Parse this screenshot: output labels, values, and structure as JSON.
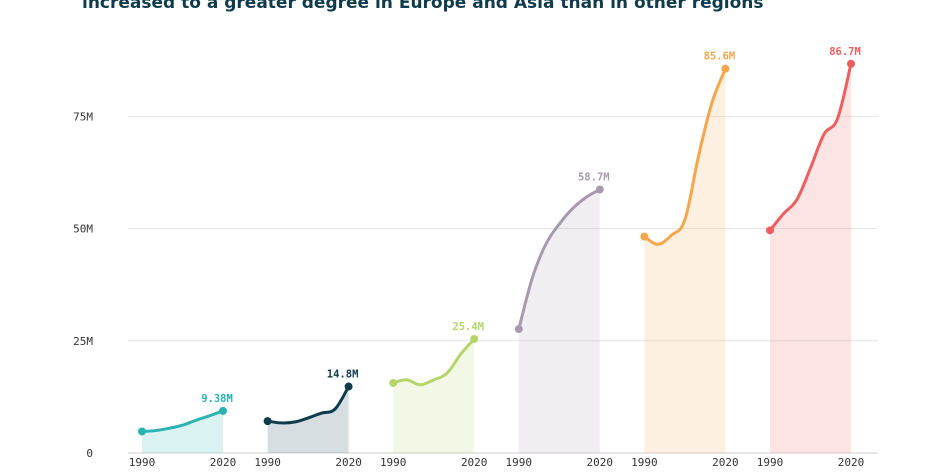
{
  "title": "increased to a greater degree in Europe and Asia than in other regions",
  "chart_data": {
    "type": "line",
    "ylim": [
      0,
      92
    ],
    "y_ticks": [
      {
        "value": 0,
        "label": "0"
      },
      {
        "value": 25,
        "label": "25M"
      },
      {
        "value": 50,
        "label": "50M"
      },
      {
        "value": 75,
        "label": "75M"
      }
    ],
    "grid": true,
    "series": [
      {
        "color": "#2ab3b1",
        "x": [
          1990,
          1995,
          2000,
          2005,
          2010,
          2015,
          2020
        ],
        "values": [
          4.8,
          5.0,
          5.5,
          6.2,
          7.3,
          8.3,
          9.38
        ],
        "x_start_label": "1990",
        "x_end_label": "2020",
        "end_label": "9.38M"
      },
      {
        "color": "#0f3b4c",
        "x": [
          1990,
          1995,
          2000,
          2005,
          2010,
          2015,
          2020
        ],
        "values": [
          7.1,
          6.7,
          6.9,
          7.8,
          8.9,
          9.8,
          14.8
        ],
        "x_start_label": "1990",
        "x_end_label": "2020",
        "end_label": "14.8M"
      },
      {
        "color": "#b5d56a",
        "x": [
          1990,
          1995,
          2000,
          2005,
          2010,
          2015,
          2020
        ],
        "values": [
          15.6,
          16.3,
          15.2,
          16.3,
          17.8,
          22.0,
          25.4
        ],
        "x_start_label": "1990",
        "x_end_label": "2020",
        "end_label": "25.4M"
      },
      {
        "color": "#a89aae",
        "x": [
          1990,
          1995,
          2000,
          2005,
          2010,
          2015,
          2020
        ],
        "values": [
          27.6,
          39.0,
          46.5,
          51.0,
          54.5,
          57.0,
          58.7
        ],
        "x_start_label": "1990",
        "x_end_label": "2020",
        "end_label": "58.7M"
      },
      {
        "color": "#f6a54c",
        "x": [
          1990,
          1995,
          2000,
          2005,
          2010,
          2015,
          2020
        ],
        "values": [
          48.2,
          46.5,
          48.5,
          52.0,
          66.0,
          78.0,
          85.6
        ],
        "x_start_label": "1990",
        "x_end_label": "2020",
        "end_label": "85.6M"
      },
      {
        "color": "#ee5e5e",
        "x": [
          1990,
          1995,
          2000,
          2005,
          2010,
          2015,
          2020
        ],
        "values": [
          49.6,
          53.3,
          56.5,
          63.5,
          71.0,
          74.5,
          86.7
        ],
        "x_start_label": "1990",
        "x_end_label": "2020",
        "end_label": "86.7M"
      }
    ]
  }
}
